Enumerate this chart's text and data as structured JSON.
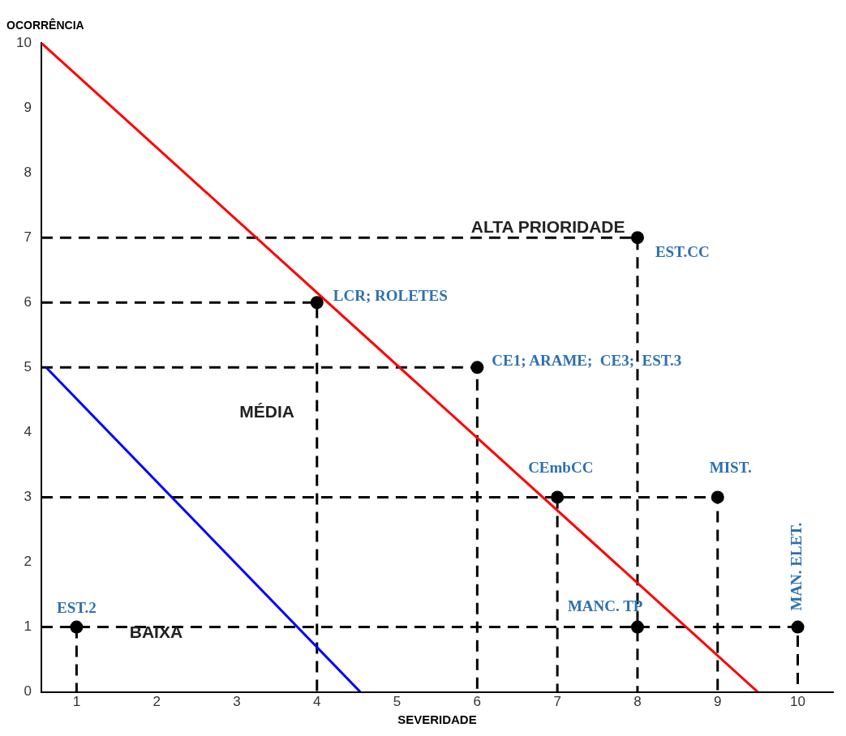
{
  "chart_data": {
    "type": "scatter",
    "xlabel": "SEVERIDADE",
    "ylabel": "OCORRÊNCIA",
    "xlim": [
      0.56,
      10.44
    ],
    "xticks": [
      1,
      2,
      3,
      4,
      5,
      6,
      7,
      8,
      9,
      10
    ],
    "ylim": [
      0,
      10
    ],
    "yticks": [
      0,
      1,
      2,
      3,
      4,
      5,
      6,
      7,
      8,
      9,
      10
    ],
    "grid": false,
    "legend": false,
    "series": [
      {
        "type": "line",
        "color": "#ff0000",
        "x": [
          0.56,
          9.5
        ],
        "values": [
          10,
          0
        ],
        "line_style": "solid",
        "marker": "none"
      },
      {
        "type": "line",
        "color": "#0000ff",
        "x": [
          0.62,
          4.54
        ],
        "values": [
          5,
          0
        ],
        "line_style": "solid",
        "marker": "none"
      },
      {
        "type": "line",
        "color": "#000000",
        "x": [
          0.56,
          4,
          4
        ],
        "values": [
          6,
          6,
          0
        ],
        "line_style": "dashed",
        "marker": "none"
      },
      {
        "type": "line",
        "color": "#000000",
        "x": [
          0.56,
          6,
          6
        ],
        "values": [
          5,
          5,
          0
        ],
        "line_style": "dashed",
        "marker": "none"
      },
      {
        "type": "line",
        "color": "#000000",
        "x": [
          0.56,
          8,
          8
        ],
        "values": [
          7,
          7,
          0
        ],
        "line_style": "dashed",
        "marker": "none"
      },
      {
        "type": "line",
        "color": "#000000",
        "x": [
          0.56,
          9,
          9
        ],
        "values": [
          3,
          3,
          0
        ],
        "line_style": "dashed",
        "marker": "none"
      },
      {
        "type": "line",
        "color": "#000000",
        "x": [
          7,
          7
        ],
        "values": [
          3,
          0
        ],
        "line_style": "dashed",
        "marker": "none"
      },
      {
        "type": "line",
        "color": "#000000",
        "x": [
          0.56,
          10,
          10
        ],
        "values": [
          1,
          1,
          0
        ],
        "line_style": "dashed",
        "marker": "none"
      },
      {
        "type": "line",
        "color": "#000000",
        "x": [
          1,
          1
        ],
        "values": [
          1,
          0
        ],
        "line_style": "dashed",
        "marker": "none"
      },
      {
        "color": "#000000",
        "x": [
          1,
          4,
          6,
          7,
          8,
          9,
          8,
          10
        ],
        "values": [
          1,
          6,
          5,
          3,
          7,
          3,
          1,
          1
        ],
        "marker": "circle"
      }
    ],
    "annotations": [
      "ALTA PRIORIDADE",
      "MÉDIA",
      "BAIXA",
      {
        "text": "EST.2",
        "x": 1,
        "y": 1
      },
      {
        "text": "LCR; ROLETES",
        "x": 4,
        "y": 6
      },
      {
        "text": "CE1; ARAME;  CE3;  EST.3",
        "x": 6,
        "y": 5
      },
      {
        "text": "CEmbCC",
        "x": 7,
        "y": 3
      },
      {
        "text": "EST.CC",
        "x": 8,
        "y": 7
      },
      {
        "text": "MIST.",
        "x": 9,
        "y": 3
      },
      {
        "text": "MANC. TP",
        "x": 8,
        "y": 1
      },
      {
        "text": "MAN. ELET.",
        "x": 10,
        "y": 1
      }
    ]
  }
}
